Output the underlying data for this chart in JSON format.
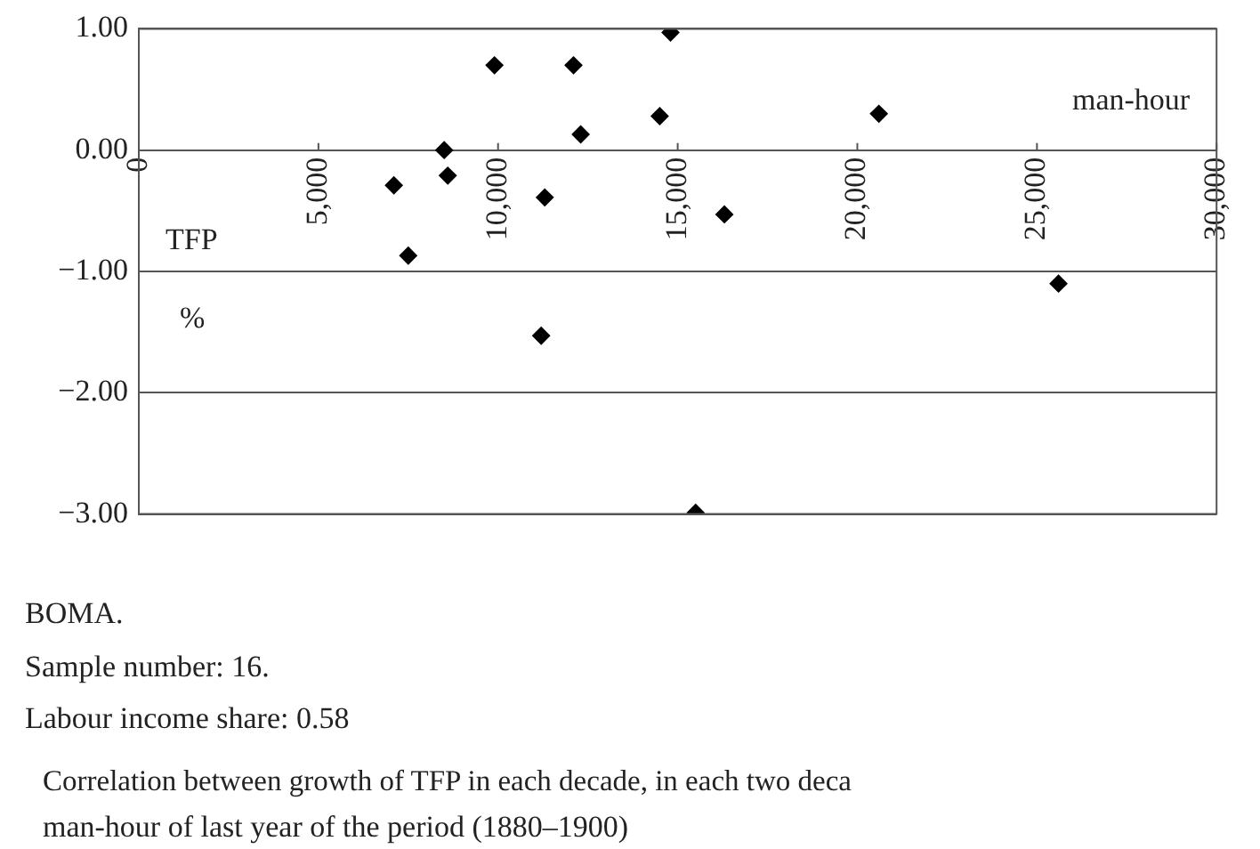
{
  "chart_data": {
    "type": "scatter",
    "xlabel": "man-hour",
    "ylabel": "TFP",
    "x": [
      9900,
      12100,
      12300,
      8500,
      8600,
      7100,
      7500,
      11300,
      11200,
      14800,
      14500,
      20600,
      16300,
      25600,
      15500
    ],
    "series": [
      {
        "color": "#000000",
        "values": [
          0.7,
          0.7,
          0.13,
          0.0,
          -0.21,
          -0.29,
          -0.87,
          -0.39,
          -1.53,
          0.97,
          0.28,
          0.3,
          -0.53,
          -1.1,
          -2.99
        ]
      }
    ],
    "xlim": [
      0,
      30000
    ],
    "ylim": [
      -3,
      1
    ],
    "xticks": [
      0,
      {
        "value": 5000,
        "label": "5,000"
      },
      {
        "value": 10000,
        "label": "10,000"
      },
      {
        "value": 15000,
        "label": "15,000"
      },
      {
        "value": 20000,
        "label": "20,000"
      },
      {
        "value": 25000,
        "label": "25,000"
      },
      {
        "value": 30000,
        "label": "30,000"
      }
    ],
    "yticks": [
      {
        "value": -3,
        "label": "−3.00"
      },
      {
        "value": -2,
        "label": "−2.00"
      },
      {
        "value": -1,
        "label": "−1.00"
      },
      {
        "value": 0,
        "label": "0.00"
      },
      {
        "value": 1,
        "label": "1.00"
      }
    ],
    "grid": "y",
    "legend": false,
    "marker": "diamond",
    "annotations": [
      "%",
      "BOMA.",
      "Sample number: 16.",
      "Labour income share: 0.58",
      "Correlation between growth of TFP in each decade, in each two deca",
      "man-hour of last year of the period (1880–1900)"
    ]
  }
}
